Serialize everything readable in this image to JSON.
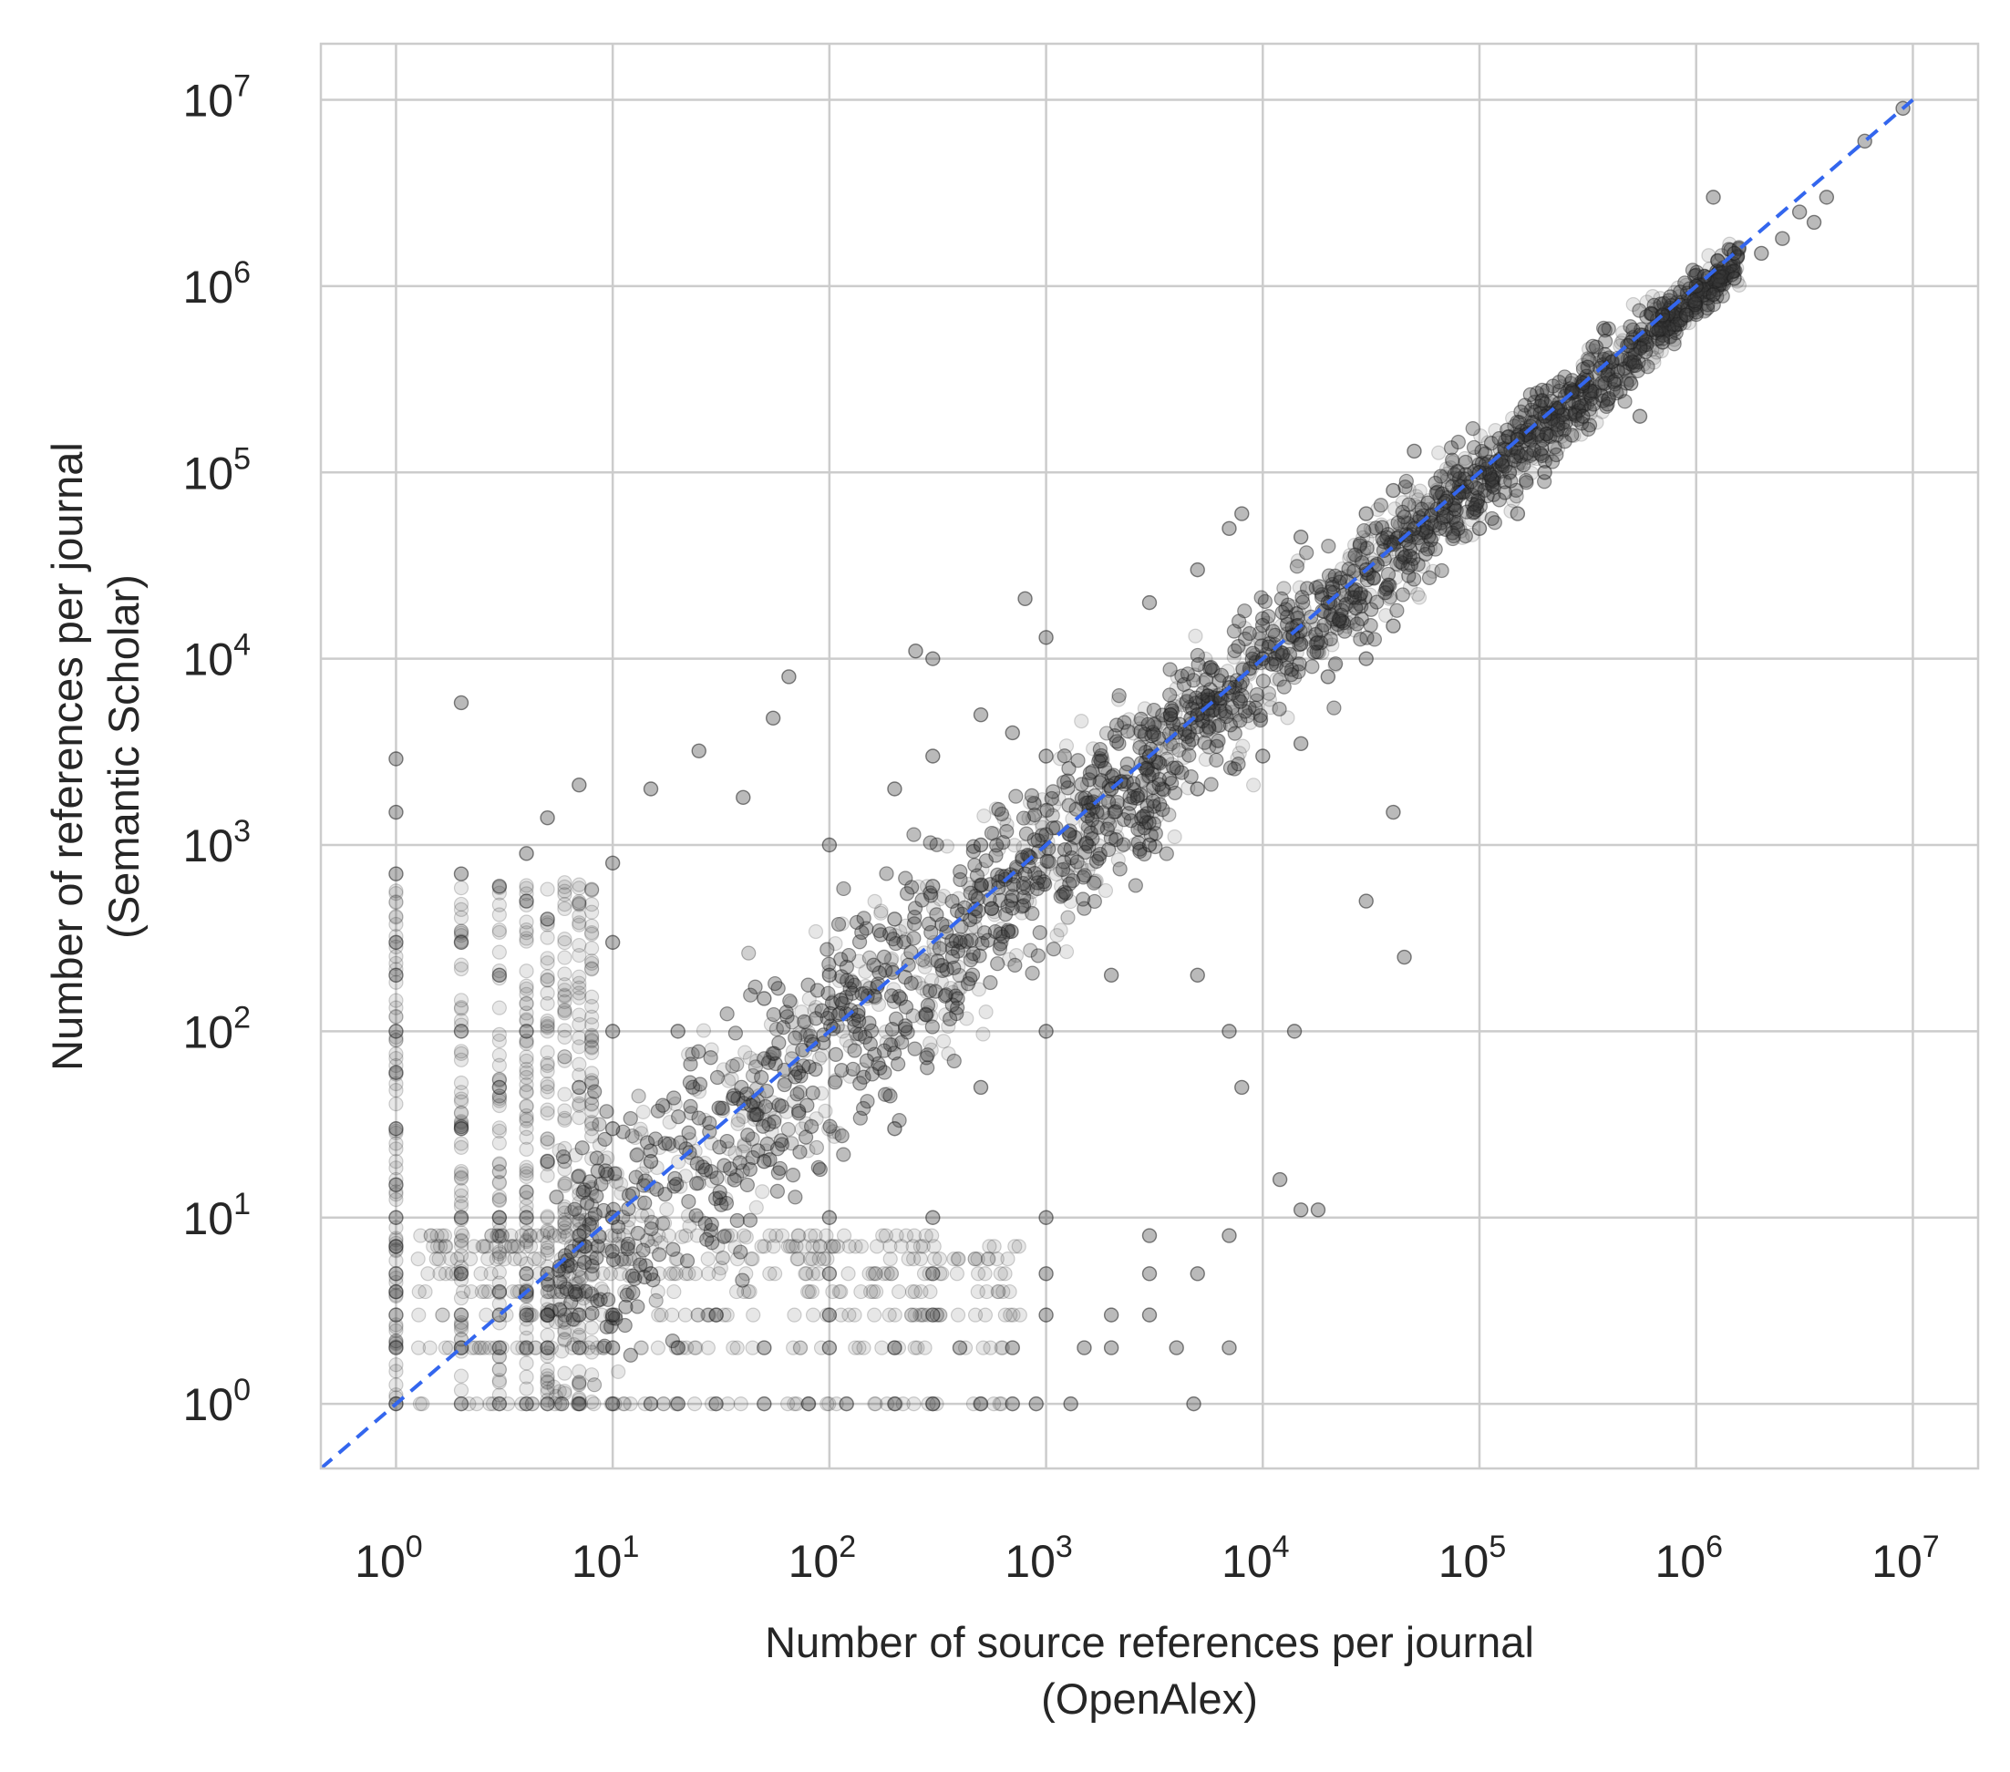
{
  "chart_data": {
    "type": "scatter",
    "title": "",
    "xlabel": [
      "Number of source references per journal",
      "(OpenAlex)"
    ],
    "ylabel": [
      "Number of references per journal",
      "(Semantic Scholar)"
    ],
    "xscale": "log",
    "yscale": "log",
    "xlim": [
      0.45,
      20000000
    ],
    "ylim": [
      0.45,
      20000000
    ],
    "x_ticks": [
      {
        "base": "10",
        "exp": "0"
      },
      {
        "base": "10",
        "exp": "1"
      },
      {
        "base": "10",
        "exp": "2"
      },
      {
        "base": "10",
        "exp": "3"
      },
      {
        "base": "10",
        "exp": "4"
      },
      {
        "base": "10",
        "exp": "5"
      },
      {
        "base": "10",
        "exp": "6"
      },
      {
        "base": "10",
        "exp": "7"
      }
    ],
    "y_ticks": [
      {
        "base": "10",
        "exp": "0"
      },
      {
        "base": "10",
        "exp": "1"
      },
      {
        "base": "10",
        "exp": "2"
      },
      {
        "base": "10",
        "exp": "3"
      },
      {
        "base": "10",
        "exp": "4"
      },
      {
        "base": "10",
        "exp": "5"
      },
      {
        "base": "10",
        "exp": "6"
      },
      {
        "base": "10",
        "exp": "7"
      }
    ],
    "grid": true,
    "legend": "none",
    "colors": {
      "points_fill": "#3a3a3a",
      "points_edge": "#1e1e1e",
      "reference_line": "#3366ee",
      "grid": "#cccccc",
      "spine": "#cccccc",
      "text": "#262626"
    },
    "reference_line": {
      "style": "dashed",
      "x": [
        0.45,
        10000000
      ],
      "y": [
        0.45,
        10000000
      ]
    },
    "series": [
      {
        "points": [
          [
            1,
            1
          ],
          [
            1,
            2
          ],
          [
            1,
            3
          ],
          [
            1,
            4
          ],
          [
            1,
            5
          ],
          [
            1,
            7
          ],
          [
            1,
            10
          ],
          [
            1,
            15
          ],
          [
            1,
            30
          ],
          [
            1,
            60
          ],
          [
            1,
            100
          ],
          [
            1,
            200
          ],
          [
            1,
            300
          ],
          [
            1,
            700
          ],
          [
            1,
            1500
          ],
          [
            1,
            2900
          ],
          [
            2,
            1
          ],
          [
            2,
            2
          ],
          [
            2,
            3
          ],
          [
            2,
            5
          ],
          [
            2,
            10
          ],
          [
            2,
            30
          ],
          [
            2,
            100
          ],
          [
            2,
            300
          ],
          [
            2,
            700
          ],
          [
            2,
            5800
          ],
          [
            3,
            1
          ],
          [
            3,
            2
          ],
          [
            3,
            3
          ],
          [
            3,
            4
          ],
          [
            3,
            10
          ],
          [
            3,
            50
          ],
          [
            3,
            200
          ],
          [
            3,
            600
          ],
          [
            4,
            1
          ],
          [
            4,
            2
          ],
          [
            4,
            3
          ],
          [
            4,
            4
          ],
          [
            4,
            5
          ],
          [
            4,
            10
          ],
          [
            4,
            100
          ],
          [
            4,
            500
          ],
          [
            4,
            900
          ],
          [
            5,
            1
          ],
          [
            5,
            2
          ],
          [
            5,
            3
          ],
          [
            5,
            5
          ],
          [
            5,
            20
          ],
          [
            5,
            400
          ],
          [
            5,
            1400
          ],
          [
            7,
            1
          ],
          [
            7,
            2
          ],
          [
            7,
            3
          ],
          [
            7,
            8
          ],
          [
            7,
            50
          ],
          [
            7,
            2100
          ],
          [
            10,
            1
          ],
          [
            10,
            2
          ],
          [
            10,
            3
          ],
          [
            10,
            10
          ],
          [
            10,
            30
          ],
          [
            10,
            100
          ],
          [
            10,
            300
          ],
          [
            10,
            800
          ],
          [
            15,
            1
          ],
          [
            15,
            5
          ],
          [
            15,
            20
          ],
          [
            15,
            2000
          ],
          [
            25,
            3200
          ],
          [
            40,
            1800
          ],
          [
            55,
            4800
          ],
          [
            65,
            8000
          ],
          [
            20,
            1
          ],
          [
            30,
            1
          ],
          [
            50,
            1
          ],
          [
            80,
            1
          ],
          [
            120,
            1
          ],
          [
            200,
            1
          ],
          [
            300,
            1
          ],
          [
            500,
            1
          ],
          [
            700,
            1
          ],
          [
            900,
            1
          ],
          [
            1300,
            1
          ],
          [
            4800,
            1
          ],
          [
            20,
            2
          ],
          [
            50,
            2
          ],
          [
            100,
            2
          ],
          [
            200,
            2
          ],
          [
            400,
            2
          ],
          [
            700,
            2
          ],
          [
            1500,
            2
          ],
          [
            2000,
            2
          ],
          [
            4000,
            2
          ],
          [
            7000,
            2
          ],
          [
            30,
            3
          ],
          [
            100,
            3
          ],
          [
            300,
            3
          ],
          [
            1000,
            3
          ],
          [
            2000,
            3
          ],
          [
            3000,
            3
          ],
          [
            100,
            5
          ],
          [
            300,
            5
          ],
          [
            1000,
            5
          ],
          [
            3000,
            5
          ],
          [
            5000,
            5
          ],
          [
            100,
            10
          ],
          [
            300,
            10
          ],
          [
            1000,
            10
          ],
          [
            3000,
            8
          ],
          [
            7000,
            8
          ],
          [
            15000,
            11
          ],
          [
            18000,
            11
          ],
          [
            12000,
            16
          ],
          [
            50,
            20
          ],
          [
            200,
            30
          ],
          [
            500,
            50
          ],
          [
            1000,
            100
          ],
          [
            2000,
            200
          ],
          [
            5000,
            200
          ],
          [
            7000,
            100
          ],
          [
            8000,
            50
          ],
          [
            14000,
            100
          ],
          [
            20,
            100
          ],
          [
            50,
            150
          ],
          [
            100,
            200
          ],
          [
            200,
            400
          ],
          [
            300,
            600
          ],
          [
            500,
            1000
          ],
          [
            800,
            700
          ],
          [
            100,
            1000
          ],
          [
            200,
            2000
          ],
          [
            300,
            3000
          ],
          [
            500,
            5000
          ],
          [
            700,
            4000
          ],
          [
            1000,
            3000
          ],
          [
            300,
            10000
          ],
          [
            250,
            11000
          ],
          [
            1000,
            13000
          ],
          [
            800,
            21000
          ],
          [
            2000,
            2000
          ],
          [
            3000,
            3000
          ],
          [
            5000,
            5000
          ],
          [
            7000,
            7000
          ],
          [
            10000,
            10000
          ],
          [
            15000,
            12000
          ],
          [
            20000,
            20000
          ],
          [
            30000,
            30000
          ],
          [
            50000,
            50000
          ],
          [
            70000,
            70000
          ],
          [
            100000,
            100000
          ],
          [
            150000,
            150000
          ],
          [
            200000,
            200000
          ],
          [
            300000,
            300000
          ],
          [
            500000,
            500000
          ],
          [
            700000,
            700000
          ],
          [
            1000000,
            1000000
          ],
          [
            3000,
            1000
          ],
          [
            5000,
            2000
          ],
          [
            10000,
            3000
          ],
          [
            15000,
            3500
          ],
          [
            20000,
            8000
          ],
          [
            30000,
            10000
          ],
          [
            40000,
            15000
          ],
          [
            40000,
            1500
          ],
          [
            45000,
            250
          ],
          [
            30000,
            500
          ],
          [
            3000,
            20000
          ],
          [
            5000,
            30000
          ],
          [
            7000,
            50000
          ],
          [
            8000,
            60000
          ],
          [
            15000,
            45000
          ],
          [
            30000,
            60000
          ],
          [
            50000,
            130000
          ],
          [
            40000,
            80000
          ],
          [
            100000,
            50000
          ],
          [
            150000,
            60000
          ],
          [
            200000,
            100000
          ],
          [
            300000,
            200000
          ],
          [
            500000,
            300000
          ],
          [
            550000,
            200000
          ],
          [
            700000,
            500000
          ],
          [
            900000,
            700000
          ],
          [
            1200000,
            900000
          ],
          [
            1500000,
            1100000
          ],
          [
            2000000,
            1500000
          ],
          [
            3000000,
            2500000
          ],
          [
            4000000,
            3000000
          ],
          [
            6000000,
            6000000
          ],
          [
            9000000,
            9000000
          ],
          [
            1200000,
            3000000
          ],
          [
            1500000,
            1500000
          ],
          [
            2500000,
            1800000
          ],
          [
            3500000,
            2200000
          ]
        ]
      }
    ]
  }
}
